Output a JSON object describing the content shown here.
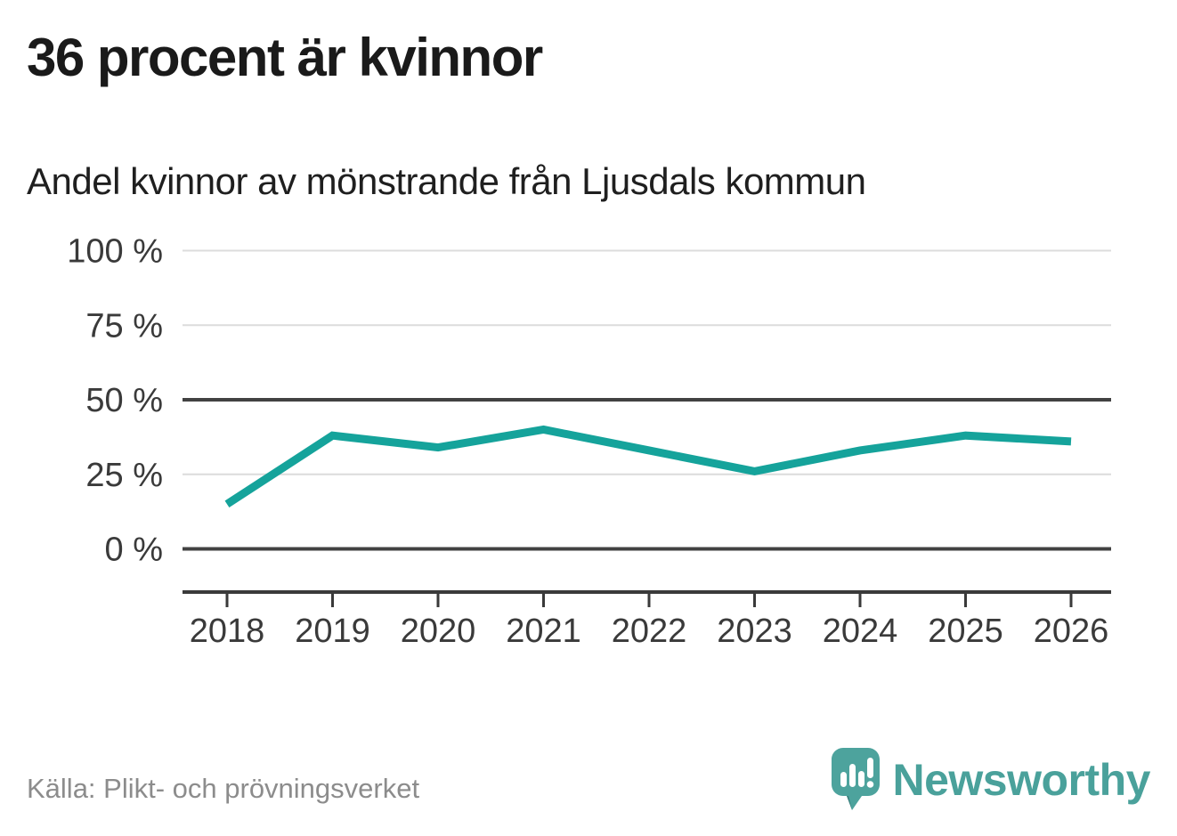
{
  "header": {
    "title": "36 procent är kvinnor",
    "subtitle": "Andel kvinnor av mönstrande från Ljusdals kommun"
  },
  "chart_data": {
    "type": "line",
    "title": "36 procent är kvinnor",
    "subtitle": "Andel kvinnor av mönstrande från Ljusdals kommun",
    "categories": [
      "2018",
      "2019",
      "2020",
      "2021",
      "2022",
      "2023",
      "2024",
      "2025",
      "2026"
    ],
    "series": [
      {
        "name": "Andel kvinnor av mönstrande",
        "values": [
          15,
          38,
          34,
          40,
          33,
          26,
          33,
          38,
          36
        ]
      }
    ],
    "unit": "%",
    "ylim": [
      0,
      100
    ],
    "yticks": [
      {
        "value": 0,
        "label": "0 %",
        "emphasized": true
      },
      {
        "value": 25,
        "label": "25 %",
        "emphasized": false
      },
      {
        "value": 50,
        "label": "50 %",
        "emphasized": true
      },
      {
        "value": 75,
        "label": "75 %",
        "emphasized": false
      },
      {
        "value": 100,
        "label": "100 %",
        "emphasized": false
      }
    ],
    "grid": true,
    "legend": "none"
  },
  "footer": {
    "source": "Källa: Plikt- och prövningsverket",
    "brand": "Newsworthy"
  },
  "icons": {
    "brand_icon": "speech-bubble-bar-chart-icon"
  },
  "colors": {
    "line": "#15a39b",
    "grid_light": "#dcdcdc",
    "grid_dark": "#424242",
    "axis": "#3a3a3a",
    "title_text": "#1a1a1a",
    "axis_text": "#3a3a3a",
    "source_text": "#8c8c8c",
    "brand_teal": "#4da39d",
    "brand_teal_dark": "#3a7e7c"
  }
}
